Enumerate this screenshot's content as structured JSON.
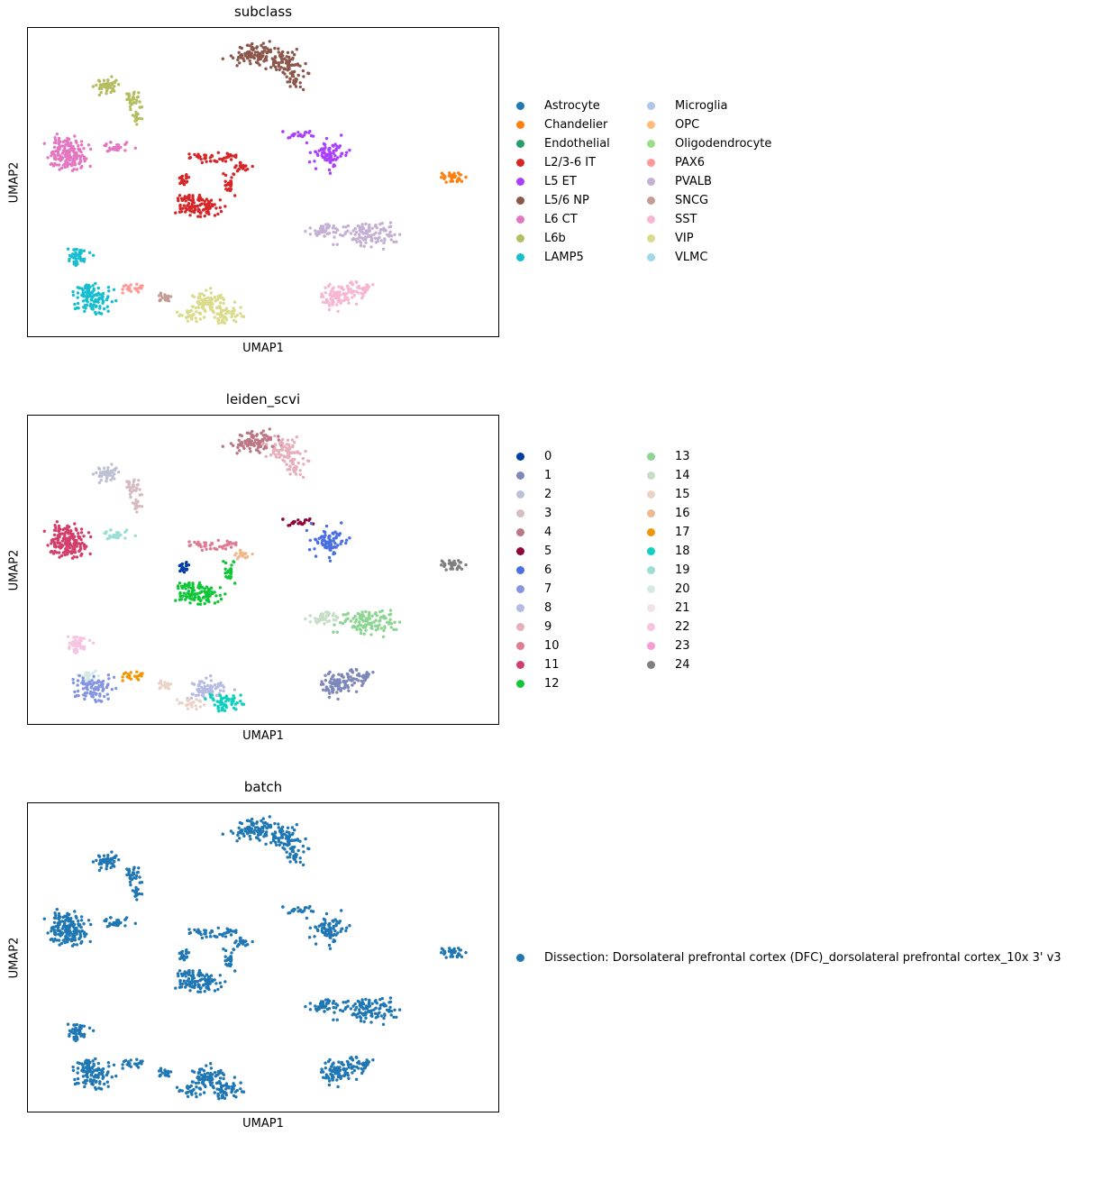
{
  "chart_data": [
    {
      "type": "scatter",
      "title": "subclass",
      "xlabel": "UMAP1",
      "ylabel": "UMAP2",
      "grid": false,
      "ticks": false,
      "legend_placement": "right",
      "legend_columns": 2,
      "series": [
        {
          "name": "Astrocyte",
          "color": "#1f77b4"
        },
        {
          "name": "Chandelier",
          "color": "#ff7f0e"
        },
        {
          "name": "Endothelial",
          "color": "#279e68"
        },
        {
          "name": "L2/3-6 IT",
          "color": "#d62728"
        },
        {
          "name": "L5 ET",
          "color": "#aa40fc"
        },
        {
          "name": "L5/6 NP",
          "color": "#8c564b"
        },
        {
          "name": "L6 CT",
          "color": "#e377c2"
        },
        {
          "name": "L6b",
          "color": "#b5bd61"
        },
        {
          "name": "LAMP5",
          "color": "#17becf"
        },
        {
          "name": "Microglia",
          "color": "#aec7e8"
        },
        {
          "name": "OPC",
          "color": "#ffbb78"
        },
        {
          "name": "Oligodendrocyte",
          "color": "#98df8a"
        },
        {
          "name": "PAX6",
          "color": "#ff9896"
        },
        {
          "name": "PVALB",
          "color": "#c5b0d5"
        },
        {
          "name": "SNCG",
          "color": "#c49c94"
        },
        {
          "name": "SST",
          "color": "#f7b6d2"
        },
        {
          "name": "VIP",
          "color": "#dbdb8d"
        },
        {
          "name": "VLMC",
          "color": "#9edae5"
        }
      ]
    },
    {
      "type": "scatter",
      "title": "leiden_scvi",
      "xlabel": "UMAP1",
      "ylabel": "UMAP2",
      "grid": false,
      "ticks": false,
      "legend_placement": "right",
      "legend_columns": 2,
      "series": [
        {
          "name": "0",
          "color": "#023fa5"
        },
        {
          "name": "1",
          "color": "#7d87b9"
        },
        {
          "name": "2",
          "color": "#bec1d4"
        },
        {
          "name": "3",
          "color": "#d6bcc0"
        },
        {
          "name": "4",
          "color": "#bb7784"
        },
        {
          "name": "5",
          "color": "#8e063b"
        },
        {
          "name": "6",
          "color": "#4a6fe3"
        },
        {
          "name": "7",
          "color": "#8595e1"
        },
        {
          "name": "8",
          "color": "#b5bbe3"
        },
        {
          "name": "9",
          "color": "#e6afb9"
        },
        {
          "name": "10",
          "color": "#e07b91"
        },
        {
          "name": "11",
          "color": "#d33f6a"
        },
        {
          "name": "12",
          "color": "#11c638"
        },
        {
          "name": "13",
          "color": "#8dd593"
        },
        {
          "name": "14",
          "color": "#c6dec7"
        },
        {
          "name": "15",
          "color": "#ead3c6"
        },
        {
          "name": "16",
          "color": "#f0b98d"
        },
        {
          "name": "17",
          "color": "#ef9708"
        },
        {
          "name": "18",
          "color": "#0fcfc0"
        },
        {
          "name": "19",
          "color": "#9cded6"
        },
        {
          "name": "20",
          "color": "#d5eae7"
        },
        {
          "name": "21",
          "color": "#f3e1eb"
        },
        {
          "name": "22",
          "color": "#f6c4e1"
        },
        {
          "name": "23",
          "color": "#f79cd4"
        },
        {
          "name": "24",
          "color": "#7f7f7f"
        }
      ]
    },
    {
      "type": "scatter",
      "title": "batch",
      "xlabel": "UMAP1",
      "ylabel": "UMAP2",
      "grid": false,
      "ticks": false,
      "legend_placement": "right",
      "legend_columns": 1,
      "series": [
        {
          "name": "Dissection: Dorsolateral prefrontal cortex (DFC)_dorsolateral prefrontal cortex_10x 3' v3",
          "color": "#1f77b4"
        }
      ]
    }
  ]
}
